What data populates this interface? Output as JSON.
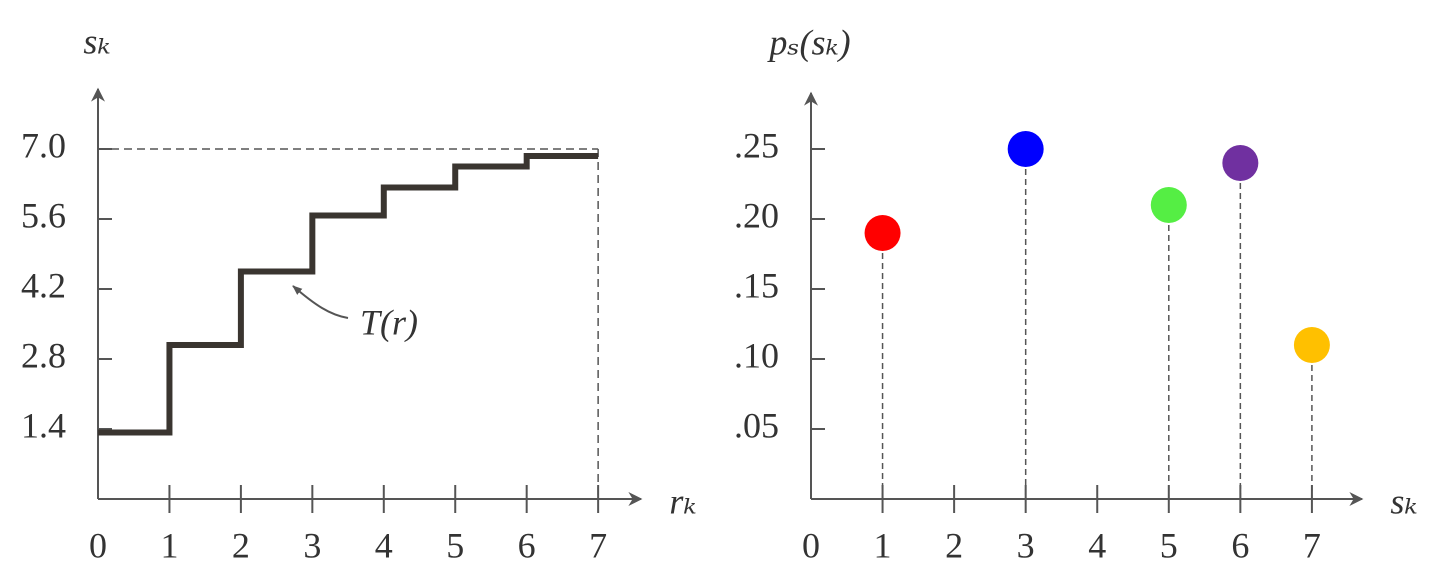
{
  "chart_data": [
    {
      "type": "step",
      "y_label": "sₖ",
      "x_label": "rₖ",
      "annotation": "T(r)",
      "x": [
        0,
        1,
        2,
        3,
        4,
        5,
        6
      ],
      "values": [
        1.33,
        3.08,
        4.55,
        5.67,
        6.23,
        6.65,
        6.86
      ],
      "color": "#3a3530",
      "xlim": [
        0,
        7.6
      ],
      "ylim": [
        0,
        8.2
      ],
      "xticks": [
        0,
        1,
        2,
        3,
        4,
        5,
        6,
        7
      ],
      "yticks": [
        1.4,
        2.8,
        4.2,
        5.6,
        {
          "value": 7,
          "label": "7.0"
        }
      ]
    },
    {
      "type": "stem",
      "y_label": "pₛ(sₖ)",
      "x_label": "sₖ",
      "x": [
        1,
        3,
        5,
        6,
        7
      ],
      "values": [
        0.19,
        0.25,
        0.21,
        0.24,
        0.11
      ],
      "colors": [
        "#ff0000",
        "#0000ff",
        "#55ee44",
        "#7030a0",
        "#ffc000"
      ],
      "xlim": [
        0,
        7.7
      ],
      "ylim": [
        0,
        0.29
      ],
      "xticks": [
        0,
        1,
        2,
        3,
        4,
        5,
        6,
        7
      ],
      "yticks": [
        {
          "value": 0.05,
          "label": ".05"
        },
        {
          "value": 0.1,
          "label": ".10"
        },
        {
          "value": 0.15,
          "label": ".15"
        },
        {
          "value": 0.2,
          "label": ".20"
        },
        {
          "value": 0.25,
          "label": ".25"
        }
      ]
    }
  ]
}
